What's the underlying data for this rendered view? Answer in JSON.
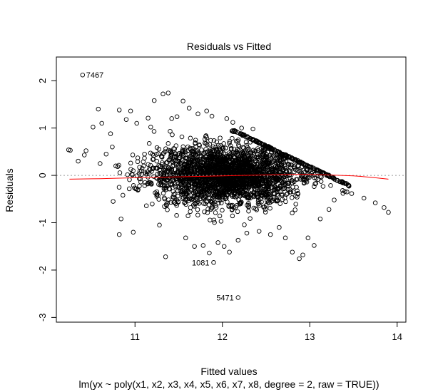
{
  "chart_data": {
    "type": "scatter",
    "title": "Residuals vs Fitted",
    "xlabel": "Fitted values",
    "subtitle": "lm(yx ~ poly(x1, x2, x3, x4, x5, x6, x7, x8, degree = 2, raw = TRUE))",
    "ylabel": "Residuals",
    "xlim": [
      10.1,
      14.1
    ],
    "ylim": [
      -3.1,
      2.5
    ],
    "x_ticks": [
      11,
      12,
      13,
      14
    ],
    "y_ticks": [
      -3,
      -2,
      -1,
      0,
      1,
      2
    ],
    "x_tick_labels": [
      "11",
      "12",
      "13",
      "14"
    ],
    "y_tick_labels": [
      "-3",
      "-2",
      "-1",
      "0",
      "1",
      "2"
    ],
    "reference_line_y": 0,
    "grid": false,
    "point_style": "open circle",
    "colors": {
      "points": "#000000",
      "smoother": "#ff0000",
      "reference": "#999999"
    },
    "labeled_points": [
      {
        "label": "7467",
        "x": 10.4,
        "y": 2.12
      },
      {
        "label": "1081",
        "x": 11.9,
        "y": -1.84
      },
      {
        "label": "5471",
        "x": 12.18,
        "y": -2.58
      }
    ],
    "outliers": [
      [
        10.24,
        0.54
      ],
      [
        10.26,
        0.53
      ],
      [
        10.35,
        0.3
      ],
      [
        10.42,
        0.43
      ],
      [
        10.44,
        0.52
      ],
      [
        10.52,
        1.02
      ],
      [
        10.58,
        1.4
      ],
      [
        10.6,
        0.25
      ],
      [
        10.62,
        1.1
      ],
      [
        10.67,
        0.45
      ],
      [
        10.72,
        0.88
      ],
      [
        10.74,
        0.6
      ],
      [
        10.75,
        -0.55
      ],
      [
        10.78,
        0.2
      ],
      [
        10.82,
        1.38
      ],
      [
        10.84,
        -0.92
      ],
      [
        10.9,
        1.18
      ],
      [
        10.95,
        1.36
      ],
      [
        10.82,
        -1.25
      ],
      [
        10.98,
        -1.2
      ],
      [
        11.02,
        1.1
      ],
      [
        11.15,
        1.21
      ],
      [
        11.18,
        1.02
      ],
      [
        11.22,
        1.58
      ],
      [
        11.28,
        -1.05
      ],
      [
        11.32,
        1.72
      ],
      [
        11.35,
        -1.72
      ],
      [
        11.38,
        1.74
      ],
      [
        11.42,
        1.2
      ],
      [
        11.48,
        1.24
      ],
      [
        11.55,
        1.57
      ],
      [
        11.58,
        -1.32
      ],
      [
        11.62,
        1.42
      ],
      [
        11.68,
        -1.5
      ],
      [
        11.72,
        1.3
      ],
      [
        11.78,
        -1.48
      ],
      [
        11.82,
        1.36
      ],
      [
        11.85,
        -1.64
      ],
      [
        11.88,
        1.25
      ],
      [
        11.95,
        -1.42
      ],
      [
        12.02,
        -1.5
      ],
      [
        12.05,
        1.2
      ],
      [
        12.08,
        -1.62
      ],
      [
        12.12,
        1.12
      ],
      [
        12.18,
        -1.37
      ],
      [
        12.22,
        1.0
      ],
      [
        12.28,
        -1.22
      ],
      [
        12.35,
        0.98
      ],
      [
        12.42,
        -1.18
      ],
      [
        12.55,
        -1.25
      ],
      [
        12.65,
        -1.1
      ],
      [
        12.72,
        -1.32
      ],
      [
        12.8,
        -1.62
      ],
      [
        12.88,
        -1.76
      ],
      [
        12.92,
        -1.68
      ],
      [
        12.98,
        -1.32
      ],
      [
        13.05,
        -1.48
      ],
      [
        13.12,
        -0.92
      ],
      [
        13.22,
        -0.72
      ],
      [
        13.28,
        -0.52
      ],
      [
        13.38,
        -0.38
      ],
      [
        13.62,
        -0.48
      ],
      [
        13.75,
        -0.58
      ],
      [
        13.85,
        -0.68
      ],
      [
        13.9,
        -0.78
      ]
    ],
    "smoother": [
      [
        10.25,
        -0.08
      ],
      [
        10.6,
        -0.07
      ],
      [
        11.0,
        -0.05
      ],
      [
        11.5,
        -0.03
      ],
      [
        12.0,
        -0.01
      ],
      [
        12.5,
        0.01
      ],
      [
        12.8,
        0.02
      ],
      [
        13.0,
        0.02
      ],
      [
        13.2,
        0.01
      ],
      [
        13.5,
        -0.01
      ],
      [
        13.7,
        -0.04
      ],
      [
        13.9,
        -0.08
      ]
    ]
  }
}
